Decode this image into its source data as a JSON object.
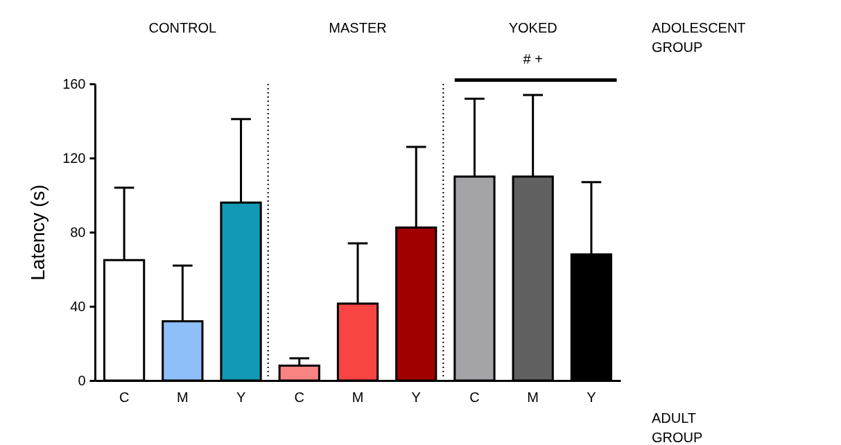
{
  "chart_data": {
    "type": "bar",
    "ylabel": "Latency (s)",
    "categories": [
      "C",
      "M",
      "Y",
      "C",
      "M",
      "Y",
      "C",
      "M",
      "Y"
    ],
    "values": [
      65,
      32,
      96,
      8,
      41.5,
      82.5,
      110,
      110,
      68
    ],
    "errors": [
      [
        65,
        104
      ],
      [
        32,
        62
      ],
      [
        96,
        141
      ],
      [
        8,
        12
      ],
      [
        41.5,
        74
      ],
      [
        82.5,
        126
      ],
      [
        110,
        152
      ],
      [
        110,
        154
      ],
      [
        68,
        107
      ]
    ],
    "colors": [
      "#ffffff",
      "#8fbff8",
      "#1199b5",
      "#f98383",
      "#f94444",
      "#a10000",
      "#a3a3a8",
      "#616161",
      "#000000"
    ],
    "ylim": [
      0,
      160
    ],
    "yticks": [
      0,
      40,
      80,
      120,
      160
    ],
    "grid": false,
    "annotations": [
      "CONTROL",
      "MASTER",
      "YOKED",
      "ADOLESCENT GROUP",
      "ADULT GROUP",
      "# +"
    ]
  }
}
